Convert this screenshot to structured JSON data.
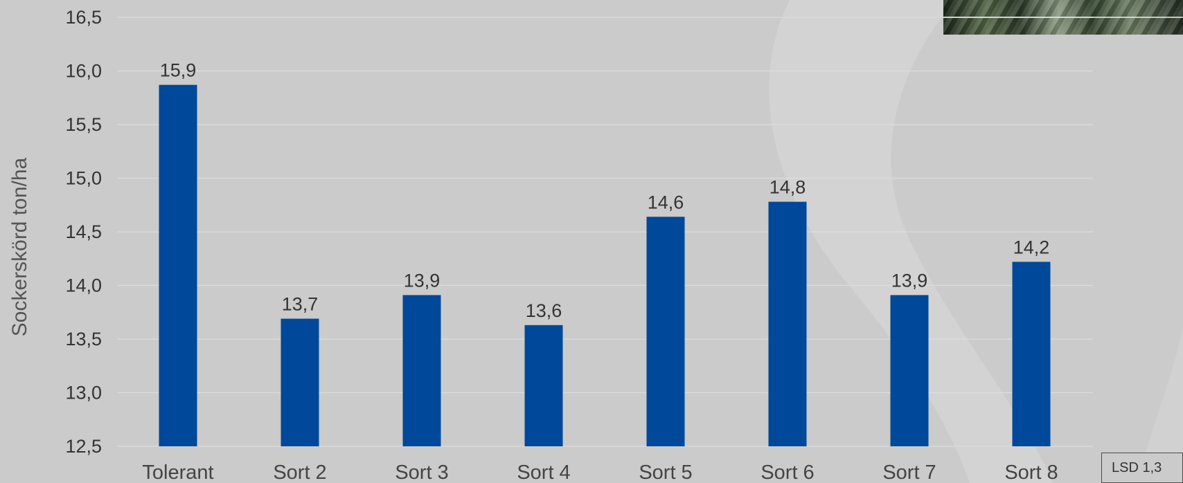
{
  "chart_data": {
    "type": "bar",
    "categories": [
      "Tolerant",
      "Sort 2",
      "Sort 3",
      "Sort 4",
      "Sort 5",
      "Sort 6",
      "Sort 7",
      "Sort 8"
    ],
    "values": [
      15.87,
      13.69,
      13.91,
      13.63,
      14.64,
      14.78,
      13.91,
      14.22
    ],
    "data_labels": [
      "15,9",
      "13,7",
      "13,9",
      "13,6",
      "14,6",
      "14,8",
      "13,9",
      "14,2"
    ],
    "ylabel": "Sockerskörd ton/ha",
    "ylim": [
      12.5,
      16.5
    ],
    "yticks": [
      "12,5",
      "13,0",
      "13,5",
      "14,0",
      "14,5",
      "15,0",
      "15,5",
      "16,0",
      "16,5"
    ],
    "grid": true,
    "bar_color": "#004899",
    "annotation": "LSD 1,3"
  }
}
